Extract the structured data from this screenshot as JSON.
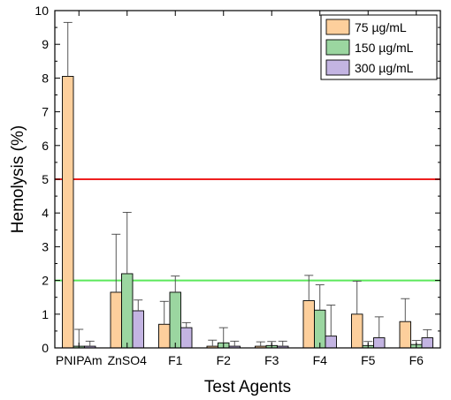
{
  "chart_data": {
    "type": "bar",
    "title": "",
    "xlabel": "Test Agents",
    "ylabel": "Hemolysis (%)",
    "ylim": [
      0,
      10
    ],
    "yticks": [
      "0",
      "1",
      "2",
      "3",
      "4",
      "5",
      "6",
      "7",
      "8",
      "9",
      "10"
    ],
    "categories": [
      "PNIPAm",
      "ZnSO4",
      "F1",
      "F2",
      "F3",
      "F4",
      "F5",
      "F6"
    ],
    "series": [
      {
        "name": "75 µg/mL",
        "color": "#fdcf9c",
        "values": [
          8.05,
          1.65,
          0.7,
          0.05,
          0.05,
          1.4,
          1.0,
          0.78
        ],
        "errors": [
          1.6,
          1.72,
          0.68,
          0.18,
          0.13,
          0.75,
          0.98,
          0.68
        ]
      },
      {
        "name": "150 µg/mL",
        "color": "#9bd6a0",
        "values": [
          0.05,
          2.2,
          1.65,
          0.15,
          0.07,
          1.12,
          0.07,
          0.1
        ],
        "errors": [
          0.5,
          1.82,
          0.48,
          0.45,
          0.12,
          0.75,
          0.12,
          0.12
        ]
      },
      {
        "name": "300 µg/mL",
        "color": "#c3b4e2",
        "values": [
          0.05,
          1.1,
          0.6,
          0.05,
          0.05,
          0.35,
          0.3,
          0.3
        ],
        "errors": [
          0.15,
          0.32,
          0.15,
          0.15,
          0.15,
          0.92,
          0.62,
          0.24
        ]
      }
    ],
    "reference_lines": [
      {
        "y": 5,
        "color": "#ee2020"
      },
      {
        "y": 2,
        "color": "#5be85b"
      }
    ],
    "legend_position": "top-right",
    "grid": false
  }
}
